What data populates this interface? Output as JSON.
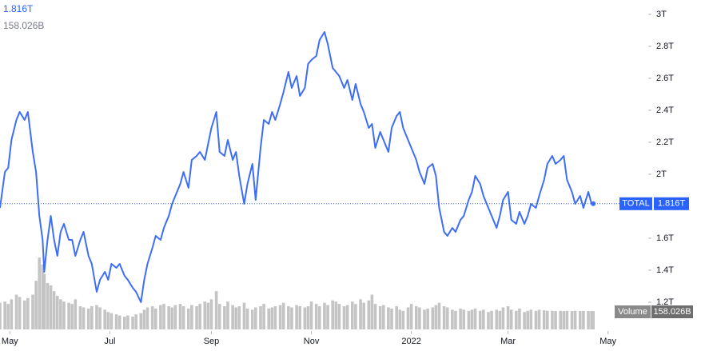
{
  "chart_data": {
    "type": "line",
    "current_price": {
      "value": 1.816,
      "label": "1.816T"
    },
    "current_volume": {
      "value": 158.026,
      "label": "158.026B"
    },
    "x": [
      -6,
      -3,
      -1,
      1,
      4,
      6,
      9,
      11,
      14,
      16,
      18,
      20,
      21,
      23,
      25,
      27,
      29,
      31,
      33,
      36,
      38,
      40,
      43,
      45,
      48,
      50,
      53,
      55,
      58,
      60,
      62,
      65,
      67,
      70,
      72,
      75,
      77,
      80,
      82,
      84,
      87,
      89,
      92,
      94,
      97,
      99,
      101,
      104,
      106,
      109,
      111,
      114,
      116,
      119,
      121,
      123,
      126,
      128,
      131,
      133,
      136,
      138,
      140,
      143,
      145,
      148,
      150,
      153,
      155,
      158,
      160,
      162,
      165,
      167,
      170,
      172,
      175,
      177,
      180,
      182,
      184,
      187,
      189,
      192,
      194,
      197,
      199,
      201,
      204,
      206,
      209,
      211,
      214,
      216,
      219,
      221,
      223,
      226,
      228,
      231,
      233,
      236,
      238,
      240,
      243,
      245,
      248,
      250,
      253,
      255,
      258,
      260,
      262,
      265,
      267,
      270,
      272,
      275,
      277,
      280,
      282,
      284,
      287,
      289,
      292,
      294,
      297,
      299,
      301,
      304,
      306,
      309,
      311,
      314,
      316,
      318,
      321,
      323,
      326,
      328,
      331,
      333,
      336,
      338,
      340,
      343,
      345,
      348,
      350,
      353,
      355,
      356
    ],
    "series": [
      {
        "name": "TOTAL",
        "color": "#3d6ef5",
        "values": [
          1.79,
          2.015,
          2.04,
          2.215,
          2.34,
          2.39,
          2.34,
          2.39,
          2.14,
          2.015,
          1.74,
          1.59,
          1.39,
          1.59,
          1.74,
          1.59,
          1.49,
          1.64,
          1.69,
          1.59,
          1.59,
          1.49,
          1.59,
          1.64,
          1.49,
          1.44,
          1.265,
          1.34,
          1.39,
          1.34,
          1.44,
          1.415,
          1.44,
          1.365,
          1.34,
          1.29,
          1.265,
          1.2,
          1.34,
          1.44,
          1.54,
          1.615,
          1.59,
          1.665,
          1.74,
          1.815,
          1.865,
          1.94,
          2.015,
          1.915,
          2.09,
          2.115,
          2.14,
          2.09,
          2.19,
          2.29,
          2.39,
          2.14,
          2.115,
          2.215,
          2.09,
          2.14,
          1.99,
          1.815,
          1.94,
          2.065,
          1.84,
          2.165,
          2.34,
          2.315,
          2.39,
          2.34,
          2.44,
          2.515,
          2.64,
          2.54,
          2.615,
          2.49,
          2.54,
          2.69,
          2.715,
          2.74,
          2.84,
          2.89,
          2.815,
          2.665,
          2.64,
          2.615,
          2.54,
          2.59,
          2.465,
          2.565,
          2.44,
          2.39,
          2.29,
          2.315,
          2.165,
          2.265,
          2.215,
          2.14,
          2.29,
          2.365,
          2.39,
          2.29,
          2.215,
          2.165,
          2.09,
          2.015,
          1.94,
          2.04,
          2.065,
          1.99,
          1.79,
          1.64,
          1.615,
          1.665,
          1.64,
          1.715,
          1.74,
          1.84,
          1.89,
          1.99,
          1.94,
          1.865,
          1.79,
          1.74,
          1.665,
          1.74,
          1.84,
          1.89,
          1.715,
          1.69,
          1.765,
          1.69,
          1.74,
          1.815,
          1.79,
          1.865,
          1.965,
          2.065,
          2.115,
          2.065,
          2.09,
          2.115,
          1.965,
          1.89,
          1.815,
          1.865,
          1.79,
          1.89,
          1.815,
          1.816
        ]
      },
      {
        "name": "Volume",
        "color": "#c4c4c4",
        "axis": "y2",
        "values": [
          230,
          240,
          220,
          260,
          300,
          280,
          250,
          270,
          300,
          420,
          620,
          560,
          480,
          400,
          380,
          330,
          290,
          260,
          240,
          230,
          220,
          260,
          200,
          190,
          180,
          200,
          210,
          190,
          170,
          150,
          140,
          130,
          120,
          110,
          120,
          110,
          130,
          140,
          170,
          190,
          200,
          180,
          210,
          220,
          200,
          190,
          210,
          220,
          200,
          180,
          210,
          200,
          220,
          240,
          230,
          260,
          330,
          220,
          200,
          240,
          210,
          190,
          200,
          230,
          180,
          170,
          190,
          200,
          220,
          180,
          190,
          200,
          210,
          230,
          200,
          190,
          210,
          200,
          190,
          200,
          240,
          220,
          200,
          230,
          210,
          250,
          240,
          220,
          200,
          210,
          240,
          220,
          260,
          230,
          250,
          300,
          220,
          200,
          210,
          190,
          180,
          200,
          170,
          160,
          190,
          220,
          200,
          190,
          170,
          180,
          190,
          210,
          230,
          200,
          190,
          170,
          160,
          180,
          170,
          160,
          170,
          180,
          160,
          170,
          150,
          160,
          170,
          160,
          190,
          200,
          170,
          160,
          180,
          150,
          160,
          170,
          160,
          170,
          165,
          160,
          160,
          158,
          160,
          158,
          160,
          158,
          160,
          158,
          160,
          158,
          158,
          158.026
        ]
      }
    ],
    "xlim": [
      -6,
      372
    ],
    "xticks": [
      {
        "value": 0,
        "label": "May"
      },
      {
        "value": 61,
        "label": "Jul"
      },
      {
        "value": 123,
        "label": "Sep"
      },
      {
        "value": 184,
        "label": "Nov"
      },
      {
        "value": 245,
        "label": "2022"
      },
      {
        "value": 304,
        "label": "Mar"
      },
      {
        "value": 365,
        "label": "May"
      }
    ],
    "ylim": [
      1.03,
      3.09
    ],
    "yticks": [
      {
        "value": 3,
        "label": "3T"
      },
      {
        "value": 2.8,
        "label": "2.8T"
      },
      {
        "value": 2.6,
        "label": "2.6T"
      },
      {
        "value": 2.4,
        "label": "2.4T"
      },
      {
        "value": 2.2,
        "label": "2.2T"
      },
      {
        "value": 2,
        "label": "2T"
      },
      {
        "value": 1.6,
        "label": "1.6T"
      },
      {
        "value": 1.4,
        "label": "1.4T"
      },
      {
        "value": 1.2,
        "label": "1.2T"
      }
    ],
    "y2lim": [
      0,
      1000
    ]
  }
}
